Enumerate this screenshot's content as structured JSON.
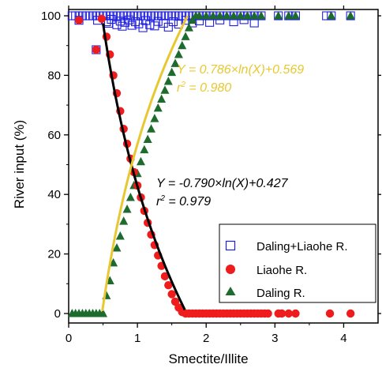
{
  "chart_data": {
    "type": "scatter",
    "xlabel": "Smectite/Illite",
    "ylabel": "River input (%)",
    "xlim": [
      0,
      4.5
    ],
    "ylim": [
      0,
      100
    ],
    "xticks": [
      0,
      1,
      2,
      3,
      4
    ],
    "yticks": [
      0,
      20,
      40,
      60,
      80,
      100
    ],
    "grid": false,
    "legend_position": "bottom-right",
    "legend": [
      "Daling+Liaohe R.",
      "Liaohe R.",
      "Daling R."
    ],
    "series": [
      {
        "name": "Daling+Liaohe R.",
        "marker": "open-square",
        "color": "#2020e0",
        "points": [
          [
            0.05,
            100
          ],
          [
            0.1,
            100
          ],
          [
            0.15,
            100
          ],
          [
            0.2,
            100
          ],
          [
            0.25,
            100
          ],
          [
            0.3,
            100
          ],
          [
            0.35,
            100
          ],
          [
            0.4,
            100
          ],
          [
            0.45,
            100
          ],
          [
            0.5,
            100
          ],
          [
            0.55,
            100
          ],
          [
            0.6,
            100
          ],
          [
            0.65,
            100
          ],
          [
            0.7,
            100
          ],
          [
            0.75,
            100
          ],
          [
            0.8,
            100
          ],
          [
            0.85,
            100
          ],
          [
            0.9,
            100
          ],
          [
            0.95,
            100
          ],
          [
            1.0,
            100
          ],
          [
            1.05,
            100
          ],
          [
            1.1,
            100
          ],
          [
            1.15,
            100
          ],
          [
            1.2,
            100
          ],
          [
            1.25,
            100
          ],
          [
            1.3,
            100
          ],
          [
            1.35,
            100
          ],
          [
            1.4,
            100
          ],
          [
            1.45,
            100
          ],
          [
            1.5,
            100
          ],
          [
            1.55,
            100
          ],
          [
            1.6,
            100
          ],
          [
            1.65,
            100
          ],
          [
            1.7,
            100
          ],
          [
            1.75,
            100
          ],
          [
            1.8,
            100
          ],
          [
            1.85,
            100
          ],
          [
            1.9,
            100
          ],
          [
            1.95,
            100
          ],
          [
            2.0,
            100
          ],
          [
            2.05,
            100
          ],
          [
            2.1,
            100
          ],
          [
            2.2,
            100
          ],
          [
            2.3,
            100
          ],
          [
            2.4,
            100
          ],
          [
            2.5,
            100
          ],
          [
            2.6,
            100
          ],
          [
            2.7,
            100
          ],
          [
            2.8,
            100
          ],
          [
            3.05,
            100
          ],
          [
            3.2,
            100
          ],
          [
            3.3,
            100
          ],
          [
            3.75,
            100
          ],
          [
            3.82,
            100
          ],
          [
            4.1,
            100
          ],
          [
            0.42,
            98.5
          ],
          [
            0.55,
            98
          ],
          [
            0.58,
            97.5
          ],
          [
            0.62,
            98.8
          ],
          [
            0.7,
            97
          ],
          [
            0.75,
            98.2
          ],
          [
            0.78,
            96.5
          ],
          [
            0.82,
            97.8
          ],
          [
            0.88,
            98.6
          ],
          [
            0.92,
            96.8
          ],
          [
            0.97,
            98
          ],
          [
            1.02,
            97.3
          ],
          [
            1.08,
            96
          ],
          [
            1.12,
            98.4
          ],
          [
            1.18,
            97
          ],
          [
            1.25,
            96.6
          ],
          [
            1.3,
            98.1
          ],
          [
            1.38,
            97.5
          ],
          [
            1.45,
            96.2
          ],
          [
            1.52,
            98
          ],
          [
            1.6,
            97.2
          ],
          [
            1.7,
            98.5
          ],
          [
            1.8,
            97.6
          ],
          [
            1.9,
            98.3
          ],
          [
            2.05,
            97.8
          ],
          [
            2.2,
            98.6
          ],
          [
            2.4,
            98
          ],
          [
            2.55,
            98.7
          ],
          [
            2.7,
            97.6
          ],
          [
            0.15,
            98.5
          ],
          [
            0.4,
            88.6
          ]
        ]
      },
      {
        "name": "Liaohe R.",
        "marker": "filled-circle",
        "color": "#ee1c1c",
        "points": [
          [
            0.15,
            98.5
          ],
          [
            0.4,
            88.6
          ],
          [
            0.48,
            99
          ],
          [
            0.55,
            93
          ],
          [
            0.6,
            87
          ],
          [
            0.65,
            80
          ],
          [
            0.7,
            74
          ],
          [
            0.75,
            68
          ],
          [
            0.8,
            62
          ],
          [
            0.85,
            57
          ],
          [
            0.9,
            52
          ],
          [
            0.95,
            47.5
          ],
          [
            1.0,
            43
          ],
          [
            1.05,
            39
          ],
          [
            1.1,
            34.5
          ],
          [
            1.15,
            30.5
          ],
          [
            1.2,
            26.5
          ],
          [
            1.25,
            23
          ],
          [
            1.3,
            19.5
          ],
          [
            1.35,
            16
          ],
          [
            1.4,
            12.5
          ],
          [
            1.45,
            9.5
          ],
          [
            1.5,
            6.5
          ],
          [
            1.55,
            4
          ],
          [
            1.6,
            2
          ],
          [
            1.65,
            0.5
          ],
          [
            1.7,
            0
          ],
          [
            1.75,
            0
          ],
          [
            1.8,
            0
          ],
          [
            1.85,
            0
          ],
          [
            1.9,
            0
          ],
          [
            1.95,
            0
          ],
          [
            2.0,
            0
          ],
          [
            2.05,
            0
          ],
          [
            2.1,
            0
          ],
          [
            2.15,
            0
          ],
          [
            2.2,
            0
          ],
          [
            2.25,
            0
          ],
          [
            2.3,
            0
          ],
          [
            2.35,
            0
          ],
          [
            2.4,
            0
          ],
          [
            2.45,
            0
          ],
          [
            2.5,
            0
          ],
          [
            2.55,
            0
          ],
          [
            2.6,
            0
          ],
          [
            2.65,
            0
          ],
          [
            2.7,
            0
          ],
          [
            2.75,
            0
          ],
          [
            2.8,
            0
          ],
          [
            2.85,
            0
          ],
          [
            2.9,
            0
          ],
          [
            3.05,
            0
          ],
          [
            3.1,
            0
          ],
          [
            3.2,
            0
          ],
          [
            3.3,
            0
          ],
          [
            3.8,
            0
          ],
          [
            4.1,
            0
          ]
        ]
      },
      {
        "name": "Daling R.",
        "marker": "filled-triangle",
        "color": "#1e6b2e",
        "points": [
          [
            0.05,
            0
          ],
          [
            0.1,
            0
          ],
          [
            0.15,
            0
          ],
          [
            0.2,
            0
          ],
          [
            0.25,
            0
          ],
          [
            0.3,
            0
          ],
          [
            0.35,
            0
          ],
          [
            0.4,
            0
          ],
          [
            0.45,
            0
          ],
          [
            0.5,
            0
          ],
          [
            0.55,
            6
          ],
          [
            0.6,
            11
          ],
          [
            0.65,
            17
          ],
          [
            0.7,
            22
          ],
          [
            0.75,
            26
          ],
          [
            0.8,
            31
          ],
          [
            0.85,
            35
          ],
          [
            0.9,
            39
          ],
          [
            0.95,
            43
          ],
          [
            1.0,
            47
          ],
          [
            1.05,
            51
          ],
          [
            1.1,
            55
          ],
          [
            1.15,
            58.5
          ],
          [
            1.2,
            62
          ],
          [
            1.25,
            65.5
          ],
          [
            1.3,
            69
          ],
          [
            1.35,
            72
          ],
          [
            1.4,
            75
          ],
          [
            1.45,
            78
          ],
          [
            1.5,
            81
          ],
          [
            1.55,
            84
          ],
          [
            1.6,
            87
          ],
          [
            1.65,
            90
          ],
          [
            1.7,
            93
          ],
          [
            1.75,
            96
          ],
          [
            1.8,
            98.5
          ],
          [
            1.85,
            100
          ],
          [
            1.9,
            100
          ],
          [
            2.0,
            100
          ],
          [
            2.1,
            100
          ],
          [
            2.2,
            100
          ],
          [
            2.3,
            100
          ],
          [
            2.4,
            100
          ],
          [
            2.5,
            100
          ],
          [
            2.6,
            100
          ],
          [
            2.7,
            100
          ],
          [
            2.8,
            100
          ],
          [
            3.05,
            100
          ],
          [
            3.2,
            100
          ],
          [
            3.3,
            100
          ],
          [
            3.82,
            100
          ],
          [
            4.1,
            100
          ]
        ]
      }
    ],
    "fits": [
      {
        "label": "Y = -0.790×ln(X)+0.427",
        "r2_label": "r",
        "r2_value": " = 0.979",
        "a": -0.79,
        "b": 0.427,
        "x_range": [
          0.5,
          1.69
        ],
        "color": "#000000"
      },
      {
        "label": "Y = 0.786×ln(X)+0.569",
        "r2_label": "r",
        "r2_value": " = 0.980",
        "a": 0.786,
        "b": 0.569,
        "x_range": [
          0.49,
          1.73
        ],
        "color": "#e8c832"
      }
    ]
  }
}
